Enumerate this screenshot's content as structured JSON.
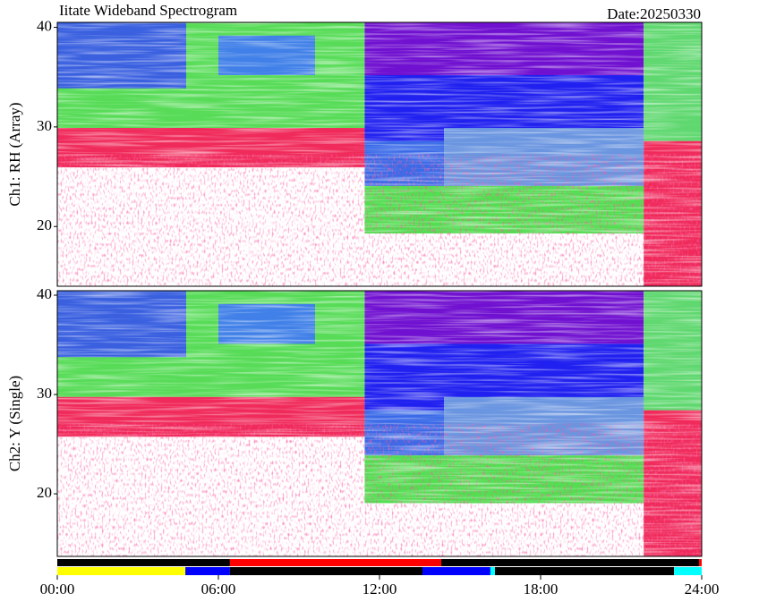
{
  "title": "Iitate Wideband Spectrogram",
  "date": "Date:20250330",
  "chart_data": [
    {
      "type": "spectrogram",
      "ylabel": "Ch1: RH (Array)",
      "xlim": [
        0,
        24
      ],
      "ylim": [
        14,
        40.5
      ],
      "yticks": [
        20,
        30,
        40
      ]
    },
    {
      "type": "spectrogram",
      "ylabel": "Ch2: Y (Single)",
      "xlim": [
        0,
        24
      ],
      "ylim": [
        13.7,
        40.45
      ],
      "yticks": [
        20,
        30,
        40
      ]
    },
    {
      "type": "timeline",
      "xlim": [
        0,
        24
      ],
      "xticks": [
        {
          "value": 0,
          "label": "00:00"
        },
        {
          "value": 6,
          "label": "06:00"
        },
        {
          "value": 12,
          "label": "12:00"
        },
        {
          "value": 18,
          "label": "18:00"
        },
        {
          "value": 24,
          "label": "24:00"
        }
      ],
      "rows": [
        [
          {
            "start": 0,
            "end": 6.43,
            "color": "#000000"
          },
          {
            "start": 6.43,
            "end": 14.3,
            "color": "#ff0000"
          },
          {
            "start": 14.3,
            "end": 23.9,
            "color": "#000000"
          },
          {
            "start": 23.9,
            "end": 24,
            "color": "#ff0000"
          }
        ],
        [
          {
            "start": 0,
            "end": 4.77,
            "color": "#ffff00"
          },
          {
            "start": 4.77,
            "end": 6.43,
            "color": "#0000ff"
          },
          {
            "start": 6.43,
            "end": 13.6,
            "color": "#000000"
          },
          {
            "start": 13.6,
            "end": 16.13,
            "color": "#0000ff"
          },
          {
            "start": 16.13,
            "end": 16.3,
            "color": "#00ffff"
          },
          {
            "start": 16.3,
            "end": 22.97,
            "color": "#000000"
          },
          {
            "start": 22.97,
            "end": 24,
            "color": "#00ffff"
          }
        ]
      ]
    }
  ]
}
